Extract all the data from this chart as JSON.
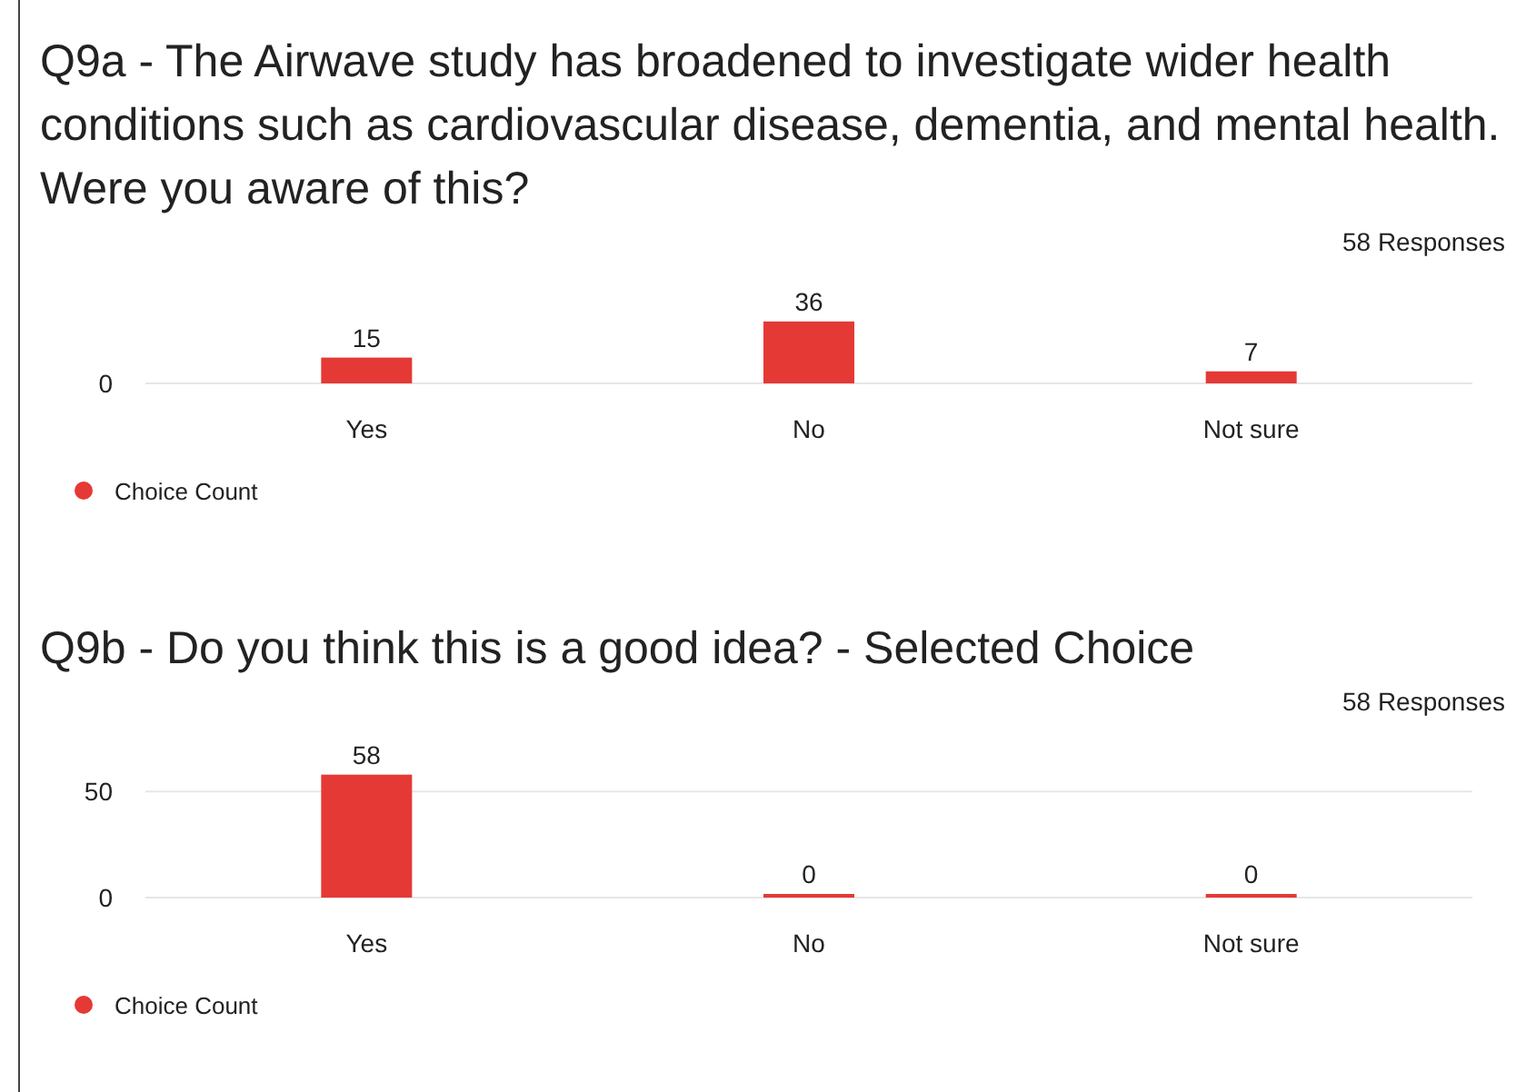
{
  "chart_data": [
    {
      "type": "bar",
      "title": "Q9a - The Airwave study has broadened to investigate wider health conditions such as cardiovascular disease, dementia, and mental health. Were you aware of this?",
      "annotations": [
        "58 Responses",
        "0"
      ],
      "categories": [
        "Yes",
        "No",
        "Not sure"
      ],
      "series": [
        {
          "name": "Choice Count",
          "color": "#e53935",
          "values": [
            15,
            36,
            7
          ]
        }
      ],
      "data_labels": true,
      "legend": "bottom left"
    },
    {
      "type": "bar",
      "title": "Q9b - Do you think this is a good idea? - Selected Choice",
      "annotations": [
        "58 Responses"
      ],
      "categories": [
        "Yes",
        "No",
        "Not sure"
      ],
      "series": [
        {
          "name": "Choice Count",
          "color": "#e53935",
          "values": [
            58,
            0,
            0
          ]
        }
      ],
      "ylim": [
        0,
        60
      ],
      "yticks": [
        0,
        50
      ],
      "grid": "y",
      "data_labels": true,
      "legend": "bottom left"
    }
  ]
}
